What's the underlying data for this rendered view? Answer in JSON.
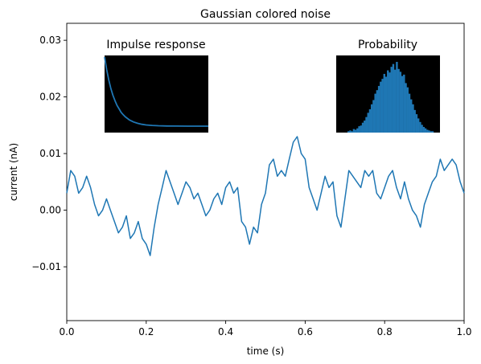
{
  "chart_data": {
    "type": "line",
    "title": "Gaussian colored noise",
    "xlabel": "time (s)",
    "ylabel": "current (nA)",
    "xlim": [
      0.0,
      1.0
    ],
    "ylim": [
      -0.0195,
      0.033
    ],
    "xticks": [
      0.0,
      0.2,
      0.4,
      0.6,
      0.8,
      1.0
    ],
    "xtick_labels": [
      "0.0",
      "0.2",
      "0.4",
      "0.6",
      "0.8",
      "1.0"
    ],
    "yticks": [
      -0.01,
      0.0,
      0.01,
      0.02,
      0.03
    ],
    "ytick_labels": [
      "−0.01",
      "0.00",
      "0.01",
      "0.02",
      "0.03"
    ],
    "grid": false,
    "line_color": "#1f77b4",
    "series": [
      {
        "x": [
          0.0,
          0.01,
          0.02,
          0.03,
          0.04,
          0.05,
          0.06,
          0.07,
          0.08,
          0.09,
          0.1,
          0.11,
          0.12,
          0.13,
          0.14,
          0.15,
          0.16,
          0.17,
          0.18,
          0.19,
          0.2,
          0.21,
          0.22,
          0.23,
          0.24,
          0.25,
          0.26,
          0.27,
          0.28,
          0.29,
          0.3,
          0.31,
          0.32,
          0.33,
          0.34,
          0.35,
          0.36,
          0.37,
          0.38,
          0.39,
          0.4,
          0.41,
          0.42,
          0.43,
          0.44,
          0.45,
          0.46,
          0.47,
          0.48,
          0.49,
          0.5,
          0.51,
          0.52,
          0.53,
          0.54,
          0.55,
          0.56,
          0.57,
          0.58,
          0.59,
          0.6,
          0.61,
          0.62,
          0.63,
          0.64,
          0.65,
          0.66,
          0.67,
          0.68,
          0.69,
          0.7,
          0.71,
          0.72,
          0.73,
          0.74,
          0.75,
          0.76,
          0.77,
          0.78,
          0.79,
          0.8,
          0.81,
          0.82,
          0.83,
          0.84,
          0.85,
          0.86,
          0.87,
          0.88,
          0.89,
          0.9,
          0.91,
          0.92,
          0.93,
          0.94,
          0.95,
          0.96,
          0.97,
          0.98,
          0.99,
          1.0
        ],
        "y": [
          0.003,
          0.007,
          0.006,
          0.003,
          0.004,
          0.006,
          0.004,
          0.001,
          -0.001,
          0.0,
          0.002,
          0.0,
          -0.002,
          -0.004,
          -0.003,
          -0.001,
          -0.005,
          -0.004,
          -0.002,
          -0.005,
          -0.006,
          -0.008,
          -0.003,
          0.001,
          0.004,
          0.007,
          0.005,
          0.003,
          0.001,
          0.003,
          0.005,
          0.004,
          0.002,
          0.003,
          0.001,
          -0.001,
          0.0,
          0.002,
          0.003,
          0.001,
          0.004,
          0.005,
          0.003,
          0.004,
          -0.002,
          -0.003,
          -0.006,
          -0.003,
          -0.004,
          0.001,
          0.003,
          0.008,
          0.009,
          0.006,
          0.007,
          0.006,
          0.009,
          0.012,
          0.013,
          0.01,
          0.009,
          0.004,
          0.002,
          0.0,
          0.003,
          0.006,
          0.004,
          0.005,
          -0.001,
          -0.003,
          0.002,
          0.007,
          0.006,
          0.005,
          0.004,
          0.007,
          0.006,
          0.007,
          0.003,
          0.002,
          0.004,
          0.006,
          0.007,
          0.004,
          0.002,
          0.005,
          0.002,
          0.0,
          -0.001,
          -0.003,
          0.001,
          0.003,
          0.005,
          0.006,
          0.009,
          0.007,
          0.008,
          0.009,
          0.008,
          0.005,
          0.003
        ]
      }
    ],
    "insets": [
      {
        "type": "line",
        "title": "Impulse response",
        "background": "#000000",
        "x": [
          0,
          1,
          2,
          3,
          4,
          5,
          6,
          7,
          8,
          9,
          10,
          12,
          14,
          16,
          18,
          20,
          23,
          26,
          30,
          35,
          40,
          45,
          50
        ],
        "y": [
          1.0,
          0.82,
          0.67,
          0.55,
          0.45,
          0.37,
          0.3,
          0.25,
          0.2,
          0.165,
          0.135,
          0.09,
          0.06,
          0.041,
          0.027,
          0.018,
          0.01,
          0.0055,
          0.0025,
          0.001,
          0.0004,
          0.0002,
          0.0001
        ]
      },
      {
        "type": "bar",
        "title": "Probability",
        "background": "#000000",
        "x": [
          -0.0095,
          -0.009,
          -0.0085,
          -0.008,
          -0.0075,
          -0.007,
          -0.0065,
          -0.006,
          -0.0055,
          -0.005,
          -0.0045,
          -0.004,
          -0.0035,
          -0.003,
          -0.0025,
          -0.002,
          -0.0015,
          -0.001,
          -0.0005,
          0.0,
          0.0005,
          0.001,
          0.0015,
          0.002,
          0.0025,
          0.003,
          0.0035,
          0.004,
          0.0045,
          0.005,
          0.0055,
          0.006,
          0.0065,
          0.007,
          0.0075,
          0.008,
          0.0085,
          0.009,
          0.0095,
          0.01,
          0.0105,
          0.011,
          0.0115,
          0.012,
          0.0125,
          0.013,
          0.0135,
          0.014
        ],
        "values": [
          0.02,
          0.03,
          0.02,
          0.05,
          0.04,
          0.06,
          0.09,
          0.1,
          0.14,
          0.17,
          0.22,
          0.28,
          0.33,
          0.4,
          0.46,
          0.55,
          0.6,
          0.66,
          0.72,
          0.76,
          0.83,
          0.79,
          0.88,
          0.85,
          0.93,
          0.97,
          0.89,
          1.0,
          0.9,
          0.86,
          0.8,
          0.82,
          0.7,
          0.64,
          0.55,
          0.47,
          0.4,
          0.32,
          0.26,
          0.2,
          0.15,
          0.11,
          0.08,
          0.06,
          0.04,
          0.03,
          0.02,
          0.02
        ]
      }
    ]
  }
}
